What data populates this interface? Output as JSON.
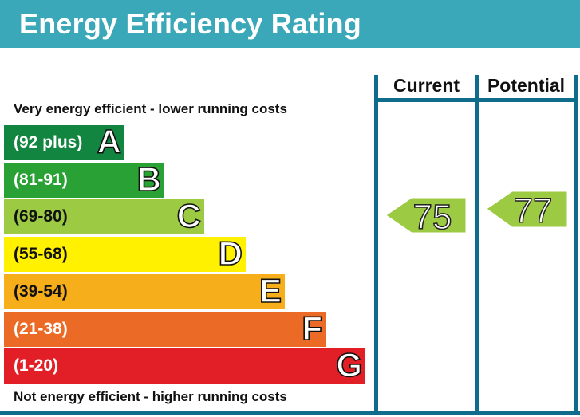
{
  "header": {
    "title": "Energy Efficiency Rating"
  },
  "captions": {
    "top": "Very energy efficient - lower running costs",
    "bottom": "Not energy efficient - higher running costs"
  },
  "columns": {
    "current": "Current",
    "potential": "Potential"
  },
  "chart_data": {
    "type": "bar",
    "bands": [
      {
        "letter": "A",
        "range": "(92 plus)",
        "color": "#128640"
      },
      {
        "letter": "B",
        "range": "(81-91)",
        "color": "#2aa135"
      },
      {
        "letter": "C",
        "range": "(69-80)",
        "color": "#9cca43"
      },
      {
        "letter": "D",
        "range": "(55-68)",
        "color": "#fff100"
      },
      {
        "letter": "E",
        "range": "(39-54)",
        "color": "#f6ae1b"
      },
      {
        "letter": "F",
        "range": "(21-38)",
        "color": "#eb6a25"
      },
      {
        "letter": "G",
        "range": "(1-20)",
        "color": "#e21e26"
      }
    ],
    "current": {
      "value": 75,
      "band": "C",
      "color": "#9cca43"
    },
    "potential": {
      "value": 77,
      "band": "C",
      "color": "#9cca43"
    }
  }
}
